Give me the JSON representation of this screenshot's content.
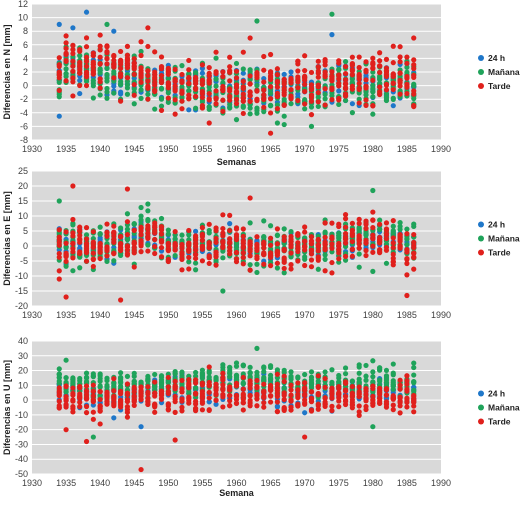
{
  "colors": {
    "plot_background": "#d9d9d9",
    "gridline": "#ffffff",
    "h24": "#1f77c9",
    "manana": "#1fa35a",
    "tarde": "#e0201c"
  },
  "chart_data": [
    {
      "type": "scatter",
      "title": "",
      "xlabel": "Semanas",
      "ylabel": "Diferencias en N [mm]",
      "xlim": [
        1930,
        1990
      ],
      "ylim": [
        -8,
        12
      ],
      "xticks": [
        1930,
        1935,
        1940,
        1945,
        1950,
        1955,
        1960,
        1965,
        1970,
        1975,
        1980,
        1985,
        1990
      ],
      "yticks": [
        -8,
        -6,
        -4,
        -2,
        0,
        2,
        4,
        6,
        8,
        10,
        12
      ],
      "grid": true,
      "legend_position": "right",
      "x_start": 1934,
      "x_step": 1,
      "series": [
        {
          "name": "24 h",
          "color": "#1f77c9",
          "center": [
            1.5,
            3,
            2.5,
            2,
            1.8,
            2,
            1.6,
            1.4,
            1.2,
            1.5,
            1.4,
            1.2,
            1.2,
            0.8,
            0.6,
            0.5,
            0.4,
            0.2,
            -0.2,
            -0.4,
            -0.5,
            -0.4,
            -0.2,
            -0.4,
            -0.2,
            -0.6,
            -0.2,
            0,
            0.1,
            0.2,
            -0.2,
            0,
            -0.1,
            0.2,
            0.4,
            -0.2,
            0,
            0.2,
            0.4,
            0.6,
            0.6,
            0.4,
            0.8,
            0.6,
            0.2,
            0.2,
            0.4,
            0.6,
            0.5,
            0.6,
            0.4,
            0.2,
            0.2
          ],
          "spread": 2.5,
          "extremes": [
            [
              1934,
              9.0
            ],
            [
              1938,
              10.8
            ],
            [
              1936,
              8.5
            ],
            [
              1934,
              -4.5
            ],
            [
              1942,
              8.0
            ],
            [
              1974,
              7.5
            ]
          ]
        },
        {
          "name": "Mañana",
          "color": "#1fa35a",
          "center": [
            1,
            2,
            2.5,
            2.4,
            2.2,
            1.8,
            2,
            1.6,
            1.2,
            1.2,
            1.4,
            0.8,
            1,
            0.6,
            0.2,
            0,
            -0.2,
            -0.4,
            -0.8,
            -0.6,
            -0.8,
            -1,
            -0.8,
            -0.6,
            -0.8,
            -1,
            -0.6,
            -0.8,
            -1.2,
            -1,
            -1.4,
            -1.2,
            -1.6,
            -1.4,
            -1.8,
            -1.6,
            -2,
            -1.6,
            -1.2,
            -1,
            -0.6,
            -0.6,
            -0.4,
            0,
            -0.4,
            0.2,
            0,
            0.2,
            0.4,
            0.2,
            0.4,
            0.2,
            0
          ],
          "spread": 3.0,
          "extremes": [
            [
              1963,
              9.5
            ],
            [
              1974,
              10.5
            ],
            [
              1941,
              9.0
            ],
            [
              1971,
              -6.0
            ],
            [
              1960,
              -5.0
            ],
            [
              1966,
              -5.5
            ]
          ]
        },
        {
          "name": "Tarde",
          "color": "#e0201c",
          "center": [
            2.5,
            3,
            3.2,
            3.4,
            3,
            3.4,
            3.2,
            3,
            2.8,
            2.6,
            2.4,
            2.2,
            2,
            1.8,
            1.4,
            1,
            0.8,
            0.6,
            0.2,
            0,
            -0.4,
            -0.2,
            0,
            -0.2,
            -0.4,
            -0.2,
            0,
            0.2,
            0,
            0.2,
            0,
            -0.2,
            0,
            0.2,
            0.4,
            0.6,
            0.8,
            1,
            1.2,
            1.4,
            1.2,
            1.6,
            1.4,
            1.6,
            1.8,
            1.6,
            1.4,
            1.2,
            1.4,
            1.6,
            1.4,
            1.2,
            1
          ],
          "spread": 3.4,
          "extremes": [
            [
              1965,
              -7.0
            ],
            [
              1947,
              8.5
            ],
            [
              1962,
              7.0
            ],
            [
              1986,
              7.0
            ],
            [
              1956,
              -5.5
            ]
          ]
        }
      ]
    },
    {
      "type": "scatter",
      "title": "",
      "xlabel": "",
      "ylabel": "Diferencias en E [mm]",
      "xlim": [
        1930,
        1990
      ],
      "ylim": [
        -20,
        25
      ],
      "xticks": [
        1930,
        1935,
        1940,
        1945,
        1950,
        1955,
        1960,
        1965,
        1970,
        1975,
        1980,
        1985,
        1990
      ],
      "yticks": [
        -20,
        -15,
        -10,
        -5,
        0,
        5,
        10,
        15,
        20,
        25
      ],
      "grid": true,
      "legend_position": "right",
      "x_start": 1934,
      "x_step": 1,
      "series": [
        {
          "name": "24 h",
          "color": "#1f77c9",
          "center": [
            0,
            0,
            1,
            1,
            0,
            0,
            0,
            1,
            1,
            2,
            2,
            2,
            3,
            2,
            2,
            2,
            1,
            1,
            0,
            0,
            0,
            1,
            1,
            2,
            2,
            1,
            1,
            0,
            0,
            0,
            0,
            -1,
            0,
            0,
            0,
            0,
            0,
            0,
            0,
            0,
            0,
            0,
            1,
            1,
            2,
            2,
            3,
            3,
            3,
            3,
            3,
            2,
            1
          ],
          "spread": 4.0,
          "extremes": [
            [
              1946,
              8.0
            ],
            [
              1935,
              -6.0
            ]
          ]
        },
        {
          "name": "Mañana",
          "color": "#1fa35a",
          "center": [
            2,
            0,
            1,
            0,
            -1,
            0,
            0,
            1,
            2,
            2,
            3,
            4,
            5,
            5,
            4,
            3,
            2,
            1,
            0,
            -1,
            -1,
            0,
            0,
            -1,
            0,
            0,
            -1,
            -1,
            -1,
            -2,
            -2,
            -1,
            -1,
            -1,
            0,
            0,
            0,
            0,
            1,
            1,
            2,
            2,
            3,
            3,
            3,
            4,
            4,
            4,
            4,
            4,
            3,
            2,
            2
          ],
          "spread": 6.0,
          "extremes": [
            [
              1980,
              18.5
            ],
            [
              1958,
              -15.0
            ],
            [
              1934,
              15.0
            ],
            [
              1947,
              14.0
            ]
          ]
        },
        {
          "name": "Tarde",
          "color": "#e0201c",
          "center": [
            0,
            -1,
            1,
            2,
            0,
            -1,
            0,
            1,
            2,
            1,
            0,
            1,
            2,
            3,
            3,
            2,
            1,
            0,
            -1,
            -1,
            0,
            1,
            1,
            2,
            3,
            2,
            1,
            0,
            -1,
            -1,
            -2,
            -2,
            -1,
            -1,
            0,
            0,
            0,
            -1,
            -1,
            0,
            0,
            1,
            1,
            2,
            2,
            3,
            3,
            3,
            2,
            1,
            0,
            -1,
            -2
          ],
          "spread": 6.5,
          "extremes": [
            [
              1936,
              20.0
            ],
            [
              1944,
              19.0
            ],
            [
              1935,
              -17.0
            ],
            [
              1943,
              -18.0
            ],
            [
              1985,
              -16.5
            ],
            [
              1962,
              16.0
            ]
          ]
        }
      ]
    },
    {
      "type": "scatter",
      "title": "",
      "xlabel": "Semana",
      "ylabel": "Diferencias en U [mm]",
      "xlim": [
        1930,
        1990
      ],
      "ylim": [
        -50,
        40
      ],
      "xticks": [
        1930,
        1935,
        1940,
        1945,
        1950,
        1955,
        1960,
        1965,
        1970,
        1975,
        1980,
        1985,
        1990
      ],
      "yticks": [
        -50,
        -40,
        -30,
        -20,
        -10,
        0,
        10,
        20,
        30,
        40
      ],
      "grid": true,
      "legend_position": "right",
      "x_start": 1934,
      "x_step": 1,
      "series": [
        {
          "name": "24 h",
          "color": "#1f77c9",
          "center": [
            5,
            6,
            5,
            5,
            4,
            4,
            3,
            4,
            4,
            5,
            5,
            4,
            4,
            5,
            5,
            6,
            6,
            7,
            7,
            6,
            6,
            7,
            7,
            7,
            7,
            8,
            8,
            7,
            7,
            7,
            6,
            6,
            5,
            5,
            4,
            4,
            4,
            4,
            5,
            5,
            5,
            5,
            5,
            5,
            5,
            6,
            6,
            6,
            5,
            5,
            5,
            5,
            4
          ],
          "spread": 8.0,
          "extremes": [
            [
              1946,
              -18.0
            ],
            [
              1942,
              -12.0
            ]
          ]
        },
        {
          "name": "Mañana",
          "color": "#1fa35a",
          "center": [
            12,
            12,
            11,
            10,
            10,
            9,
            9,
            8,
            8,
            9,
            9,
            9,
            10,
            10,
            10,
            11,
            11,
            12,
            13,
            13,
            13,
            14,
            14,
            14,
            14,
            15,
            15,
            15,
            14,
            13,
            13,
            13,
            12,
            12,
            12,
            11,
            11,
            11,
            11,
            12,
            12,
            12,
            12,
            12,
            12,
            12,
            13,
            13,
            13,
            12,
            12,
            11,
            11
          ],
          "spread": 9.0,
          "extremes": [
            [
              1963,
              35.0
            ],
            [
              1935,
              27.0
            ],
            [
              1939,
              -25.0
            ],
            [
              1980,
              -18.0
            ]
          ]
        },
        {
          "name": "Tarde",
          "color": "#e0201c",
          "center": [
            3,
            3,
            2,
            2,
            1,
            1,
            0,
            0,
            0,
            1,
            1,
            1,
            2,
            2,
            2,
            3,
            3,
            4,
            4,
            4,
            4,
            5,
            5,
            5,
            5,
            5,
            5,
            4,
            4,
            4,
            3,
            3,
            2,
            2,
            2,
            1,
            1,
            1,
            2,
            2,
            2,
            2,
            2,
            2,
            2,
            3,
            3,
            3,
            3,
            2,
            2,
            2,
            1
          ],
          "spread": 10.0,
          "extremes": [
            [
              1946,
              -47.0
            ],
            [
              1938,
              -28.0
            ],
            [
              1935,
              -20.0
            ],
            [
              1970,
              -25.0
            ],
            [
              1951,
              -27.0
            ]
          ]
        }
      ]
    }
  ]
}
